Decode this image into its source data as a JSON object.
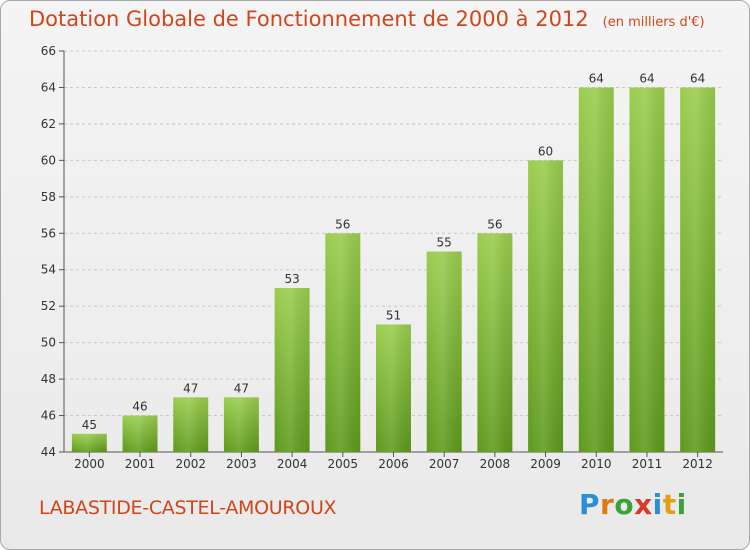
{
  "title": "Dotation Globale de Fonctionnement de 2000 à 2012",
  "unit": "(en milliers d'€)",
  "commune": "LABASTIDE-CASTEL-AMOUROUX",
  "brand": {
    "letters": [
      "P",
      "r",
      "o",
      "x",
      "i",
      "t",
      "i"
    ],
    "colors": [
      "#2a8fd6",
      "#e07a10",
      "#3aa23a",
      "#d83a2a",
      "#2a8fd6",
      "#e0a010",
      "#3aa23a"
    ]
  },
  "colors": {
    "bar_top": "#9acd4e",
    "bar_bottom": "#5d9a1c",
    "text_accent": "#d0461a"
  },
  "chart_data": {
    "type": "bar",
    "title": "Dotation Globale de Fonctionnement de 2000 à 2012",
    "subtitle": "(en milliers d'€)",
    "categories": [
      "2000",
      "2001",
      "2002",
      "2003",
      "2004",
      "2005",
      "2006",
      "2007",
      "2008",
      "2009",
      "2010",
      "2011",
      "2012"
    ],
    "values": [
      45,
      46,
      47,
      47,
      53,
      56,
      51,
      55,
      56,
      60,
      64,
      64,
      64
    ],
    "ylim": [
      44,
      66
    ],
    "yticks": [
      44,
      46,
      48,
      50,
      52,
      54,
      56,
      58,
      60,
      62,
      64,
      66
    ],
    "grid": "horizontal-dashed",
    "data_labels": true
  }
}
